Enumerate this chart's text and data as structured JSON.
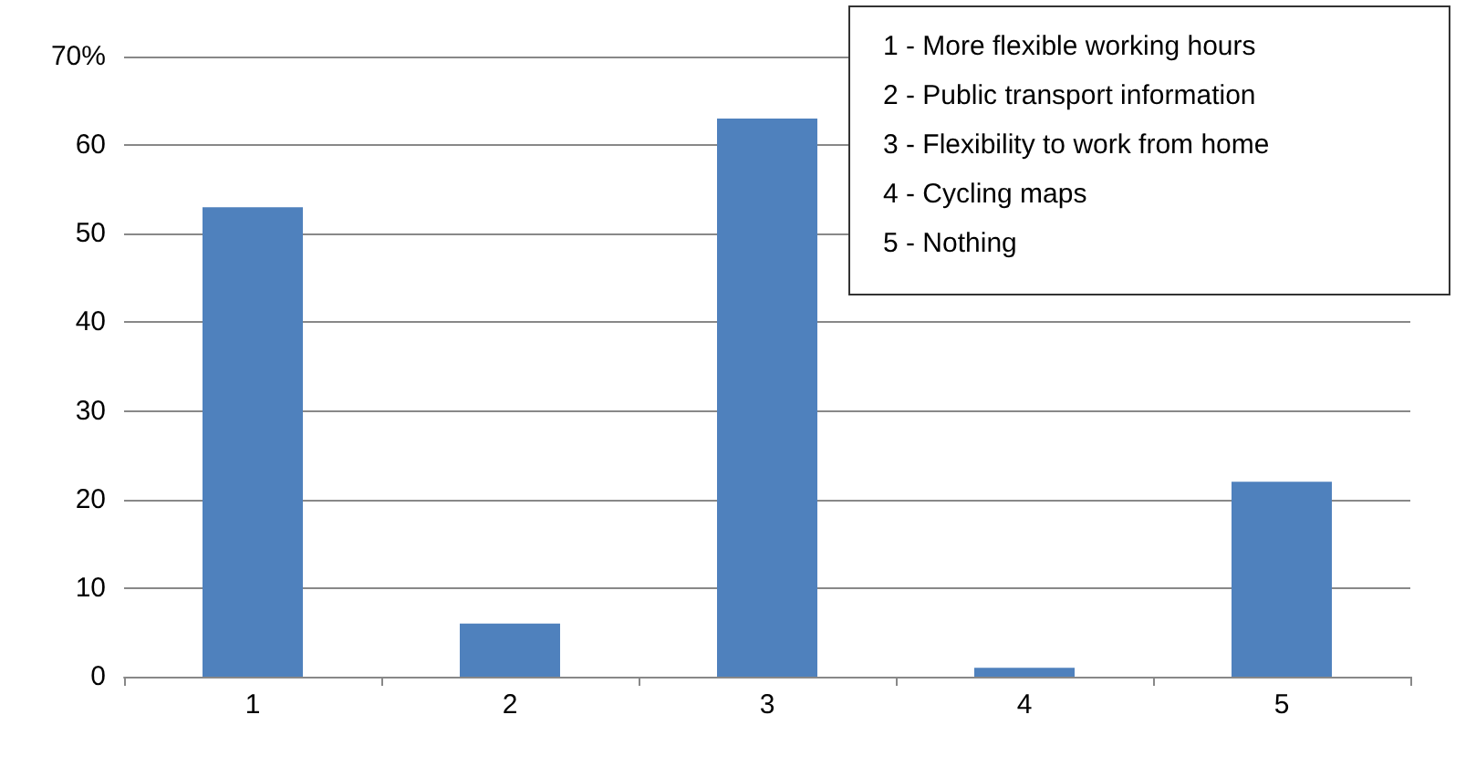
{
  "chart_data": {
    "type": "bar",
    "categories": [
      "1",
      "2",
      "3",
      "4",
      "5"
    ],
    "values": [
      53,
      6,
      63,
      1,
      22
    ],
    "color": "#4f81bd",
    "ylim": [
      0,
      70
    ],
    "yticks": [
      0,
      10,
      20,
      30,
      40,
      50,
      60,
      {
        "value": 70,
        "label": "70%"
      }
    ],
    "grid": "y",
    "annotations": [
      "1 - More flexible working hours",
      "2 - Public transport information",
      "3 - Flexibility to work from home",
      "4 - Cycling maps",
      "5 - Nothing"
    ]
  }
}
